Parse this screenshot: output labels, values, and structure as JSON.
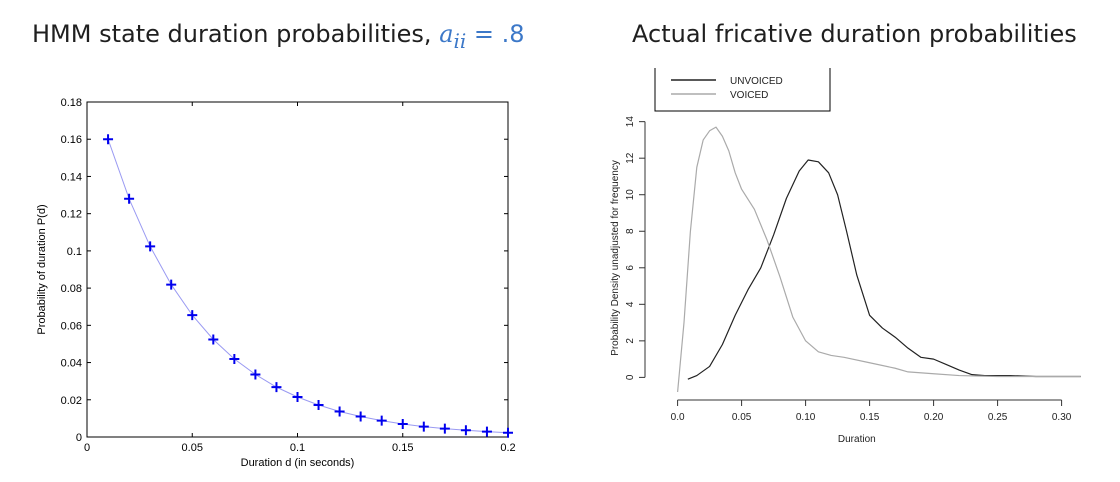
{
  "left_chart": {
    "title_prefix": "HMM state duration probabilities, ",
    "title_math_var": "a",
    "title_math_sub": "ii",
    "title_math_rest": " = .8"
  },
  "right_chart": {
    "title": "Actual fricative duration probabilities"
  },
  "chart_data": [
    {
      "type": "line",
      "marker": "+",
      "xlabel": "Duration d (in seconds)",
      "ylabel": "Probability of duration P(d)",
      "xlim": [
        0,
        0.2
      ],
      "ylim": [
        0,
        0.18
      ],
      "xticks": [
        0,
        0.05,
        0.1,
        0.15,
        0.2
      ],
      "xtick_labels": [
        "0",
        "0.05",
        "0.1",
        "0.15",
        "0.2"
      ],
      "yticks": [
        0,
        0.02,
        0.04,
        0.06,
        0.08,
        0.1,
        0.12,
        0.14,
        0.16,
        0.18
      ],
      "ytick_labels": [
        "0",
        "0.02",
        "0.04",
        "0.06",
        "0.08",
        "0.1",
        "0.12",
        "0.14",
        "0.16",
        "0.18"
      ],
      "series": [
        {
          "x": [
            0.01,
            0.02,
            0.03,
            0.04,
            0.05,
            0.06,
            0.07,
            0.08,
            0.09,
            0.1,
            0.11,
            0.12,
            0.13,
            0.14,
            0.15,
            0.16,
            0.17,
            0.18,
            0.19,
            0.2
          ],
          "y": [
            0.16,
            0.128,
            0.1024,
            0.0819,
            0.0655,
            0.0524,
            0.0419,
            0.0336,
            0.0268,
            0.0215,
            0.0172,
            0.0137,
            0.011,
            0.0088,
            0.007,
            0.0056,
            0.0045,
            0.0036,
            0.0029,
            0.0023
          ],
          "color": "#0000ee"
        }
      ]
    },
    {
      "type": "line",
      "xlabel": "Duration",
      "ylabel": "Probability Density unadjusted for frequency",
      "xlim": [
        -0.02,
        0.33
      ],
      "ylim": [
        -0.8,
        14.2
      ],
      "xticks": [
        0,
        0.05,
        0.1,
        0.15,
        0.2,
        0.25,
        0.3
      ],
      "xtick_labels": [
        "0.0",
        "0.05",
        "0.10",
        "0.15",
        "0.20",
        "0.25",
        "0.30"
      ],
      "yticks": [
        0,
        2,
        4,
        6,
        8,
        10,
        12,
        14
      ],
      "ytick_labels": [
        "0",
        "2",
        "4",
        "6",
        "8",
        "10",
        "12",
        "14"
      ],
      "legend": "top-left",
      "series": [
        {
          "name": "UNVOICED",
          "color": "#222222",
          "x": [
            0.008,
            0.015,
            0.025,
            0.035,
            0.045,
            0.055,
            0.065,
            0.075,
            0.085,
            0.095,
            0.102,
            0.11,
            0.118,
            0.125,
            0.132,
            0.14,
            0.15,
            0.16,
            0.17,
            0.18,
            0.19,
            0.2,
            0.21,
            0.22,
            0.23,
            0.24,
            0.26,
            0.28,
            0.3,
            0.315
          ],
          "y": [
            -0.1,
            0.1,
            0.6,
            1.8,
            3.4,
            4.8,
            6.0,
            7.8,
            9.8,
            11.3,
            11.9,
            11.8,
            11.2,
            10.0,
            8.0,
            5.6,
            3.4,
            2.7,
            2.2,
            1.6,
            1.1,
            1.0,
            0.7,
            0.4,
            0.15,
            0.1,
            0.1,
            0.05,
            0.05,
            0.05
          ]
        },
        {
          "name": "VOICED",
          "color": "#aaaaaa",
          "x": [
            0.0,
            0.005,
            0.01,
            0.015,
            0.02,
            0.025,
            0.03,
            0.035,
            0.04,
            0.045,
            0.05,
            0.06,
            0.07,
            0.08,
            0.09,
            0.1,
            0.11,
            0.12,
            0.13,
            0.15,
            0.17,
            0.18,
            0.2,
            0.22,
            0.25,
            0.28,
            0.315
          ],
          "y": [
            -0.8,
            3.0,
            8.0,
            11.5,
            13.0,
            13.5,
            13.7,
            13.2,
            12.4,
            11.2,
            10.3,
            9.2,
            7.5,
            5.5,
            3.3,
            2.0,
            1.4,
            1.2,
            1.1,
            0.8,
            0.5,
            0.3,
            0.2,
            0.1,
            0.05,
            0.05,
            0.05
          ]
        }
      ]
    }
  ]
}
